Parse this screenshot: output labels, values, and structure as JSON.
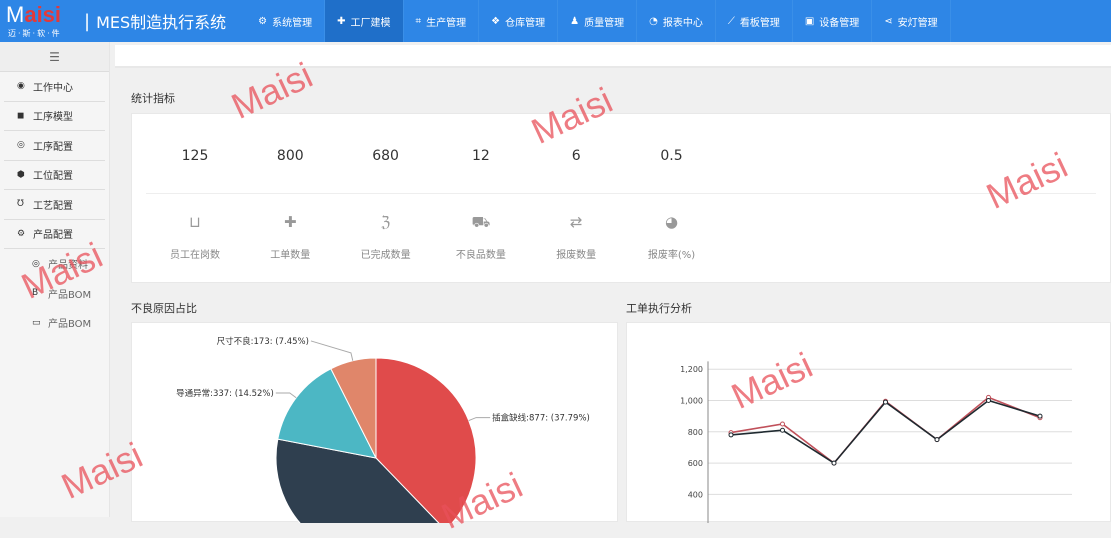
{
  "header": {
    "logo_text": "Maisi",
    "logo_sub": "迈·斯·软·件",
    "title": "MES制造执行系统",
    "nav": [
      {
        "icon": "gears-icon",
        "glyph": "⚙",
        "label": "系统管理"
      },
      {
        "icon": "plus-icon",
        "glyph": "✚",
        "label": "工厂建模",
        "active": true
      },
      {
        "icon": "crop-icon",
        "glyph": "⌗",
        "label": "生产管理"
      },
      {
        "icon": "cubes-icon",
        "glyph": "❖",
        "label": "仓库管理"
      },
      {
        "icon": "user-icon",
        "glyph": "♟",
        "label": "质量管理"
      },
      {
        "icon": "chart-circle-icon",
        "glyph": "◔",
        "label": "报表中心"
      },
      {
        "icon": "line-chart-icon",
        "glyph": "⟋",
        "label": "看板管理"
      },
      {
        "icon": "device-icon",
        "glyph": "▣",
        "label": "设备管理"
      },
      {
        "icon": "share-icon",
        "glyph": "⋖",
        "label": "安灯管理"
      }
    ]
  },
  "sidebar": {
    "toggle_glyph": "☰",
    "items": [
      {
        "glyph": "◉",
        "label": "工作中心"
      },
      {
        "glyph": "◼",
        "label": "工序模型"
      },
      {
        "glyph": "◎",
        "label": "工序配置"
      },
      {
        "glyph": "⬢",
        "label": "工位配置"
      },
      {
        "glyph": "Ʊ",
        "label": "工艺配置"
      },
      {
        "glyph": "⚙",
        "label": "产品配置"
      }
    ],
    "sub_items": [
      {
        "glyph": "◎",
        "label": "产品资料"
      },
      {
        "glyph": "B",
        "label": "产品BOM"
      },
      {
        "glyph": "▭",
        "label": "产品BOM"
      }
    ]
  },
  "stats": {
    "title": "统计指标",
    "items": [
      {
        "value": "125",
        "label": "员工在岗数",
        "icon": "basket-icon",
        "glyph": "⊔"
      },
      {
        "value": "800",
        "label": "工单数量",
        "icon": "puzzle-icon",
        "glyph": "✚"
      },
      {
        "value": "680",
        "label": "已完成数量",
        "icon": "hearing-icon",
        "glyph": "ℨ"
      },
      {
        "value": "12",
        "label": "不良品数量",
        "icon": "truck-icon",
        "glyph": "⛟"
      },
      {
        "value": "6",
        "label": "报废数量",
        "icon": "retweet-icon",
        "glyph": "⇄"
      },
      {
        "value": "0.5",
        "label": "报废率(%)",
        "icon": "runner-icon",
        "glyph": "◕"
      }
    ]
  },
  "chart_data": [
    {
      "type": "pie",
      "title": "不良原因占比",
      "slices": [
        {
          "name": "插盒缺线",
          "value": 877,
          "percent": 37.79,
          "color": "#e04b4b",
          "label": "插盒缺线:877: (37.79%)"
        },
        {
          "name": "",
          "percent": 40.24,
          "color": "#2f3f4f",
          "label": ""
        },
        {
          "name": "导通异常",
          "value": 337,
          "percent": 14.52,
          "color": "#4cb7c4",
          "label": "导通异常:337: (14.52%)"
        },
        {
          "name": "尺寸不良",
          "value": 173,
          "percent": 7.45,
          "color": "#e0866a",
          "label": "尺寸不良:173: (7.45%)"
        }
      ]
    },
    {
      "type": "line",
      "title": "工单执行分析",
      "ylim": [
        0,
        1200
      ],
      "yticks": [
        "1,200",
        "1,000",
        "800",
        "600",
        "400"
      ],
      "ytick_values": [
        1200,
        1000,
        800,
        600,
        400
      ],
      "grid": true,
      "series": [
        {
          "color": "#c0505a",
          "values": [
            795,
            850,
            600,
            995,
            750,
            1020,
            890
          ]
        },
        {
          "color": "#1f2a30",
          "values": [
            780,
            810,
            600,
            990,
            750,
            1000,
            900
          ]
        }
      ]
    }
  ],
  "watermark": "Maisi"
}
